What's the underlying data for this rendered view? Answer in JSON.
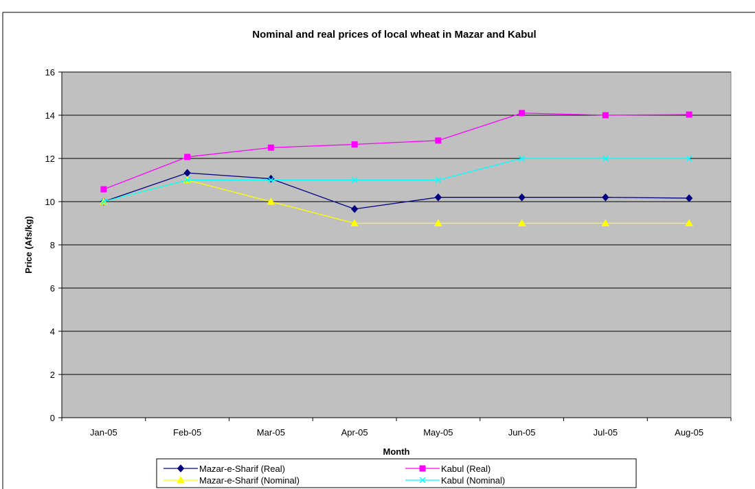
{
  "chart_data": {
    "type": "line",
    "title": "Nominal and real prices of local wheat in Mazar and Kabul",
    "xlabel": "Month",
    "ylabel": "Price (Afs/kg)",
    "ylim": [
      0,
      16
    ],
    "yticks": [
      0,
      2,
      4,
      6,
      8,
      10,
      12,
      14,
      16
    ],
    "grid": true,
    "legend_position": "bottom",
    "plot_background": "#c0c0c0",
    "categories": [
      "Jan-05",
      "Feb-05",
      "Mar-05",
      "Apr-05",
      "May-05",
      "Jun-05",
      "Jul-05",
      "Aug-05"
    ],
    "series": [
      {
        "name": "Mazar-e-Sharif (Real)",
        "color": "#000080",
        "marker": "diamond",
        "values": [
          10.0,
          11.33,
          11.06,
          9.66,
          10.2,
          10.2,
          10.2,
          10.16
        ]
      },
      {
        "name": "Kabul (Real)",
        "color": "#ff00ff",
        "marker": "square",
        "values": [
          10.57,
          12.07,
          12.5,
          12.65,
          12.83,
          14.1,
          14.0,
          14.03
        ]
      },
      {
        "name": "Mazar-e-Sharif (Nominal)",
        "color": "#ffff00",
        "marker": "triangle",
        "values": [
          10.0,
          11.0,
          10.0,
          9.0,
          9.0,
          9.0,
          9.0,
          9.0
        ]
      },
      {
        "name": "Kabul (Nominal)",
        "color": "#00ffff",
        "marker": "x",
        "values": [
          10.0,
          11.0,
          11.0,
          11.0,
          11.0,
          12.0,
          12.0,
          12.0
        ]
      }
    ]
  }
}
